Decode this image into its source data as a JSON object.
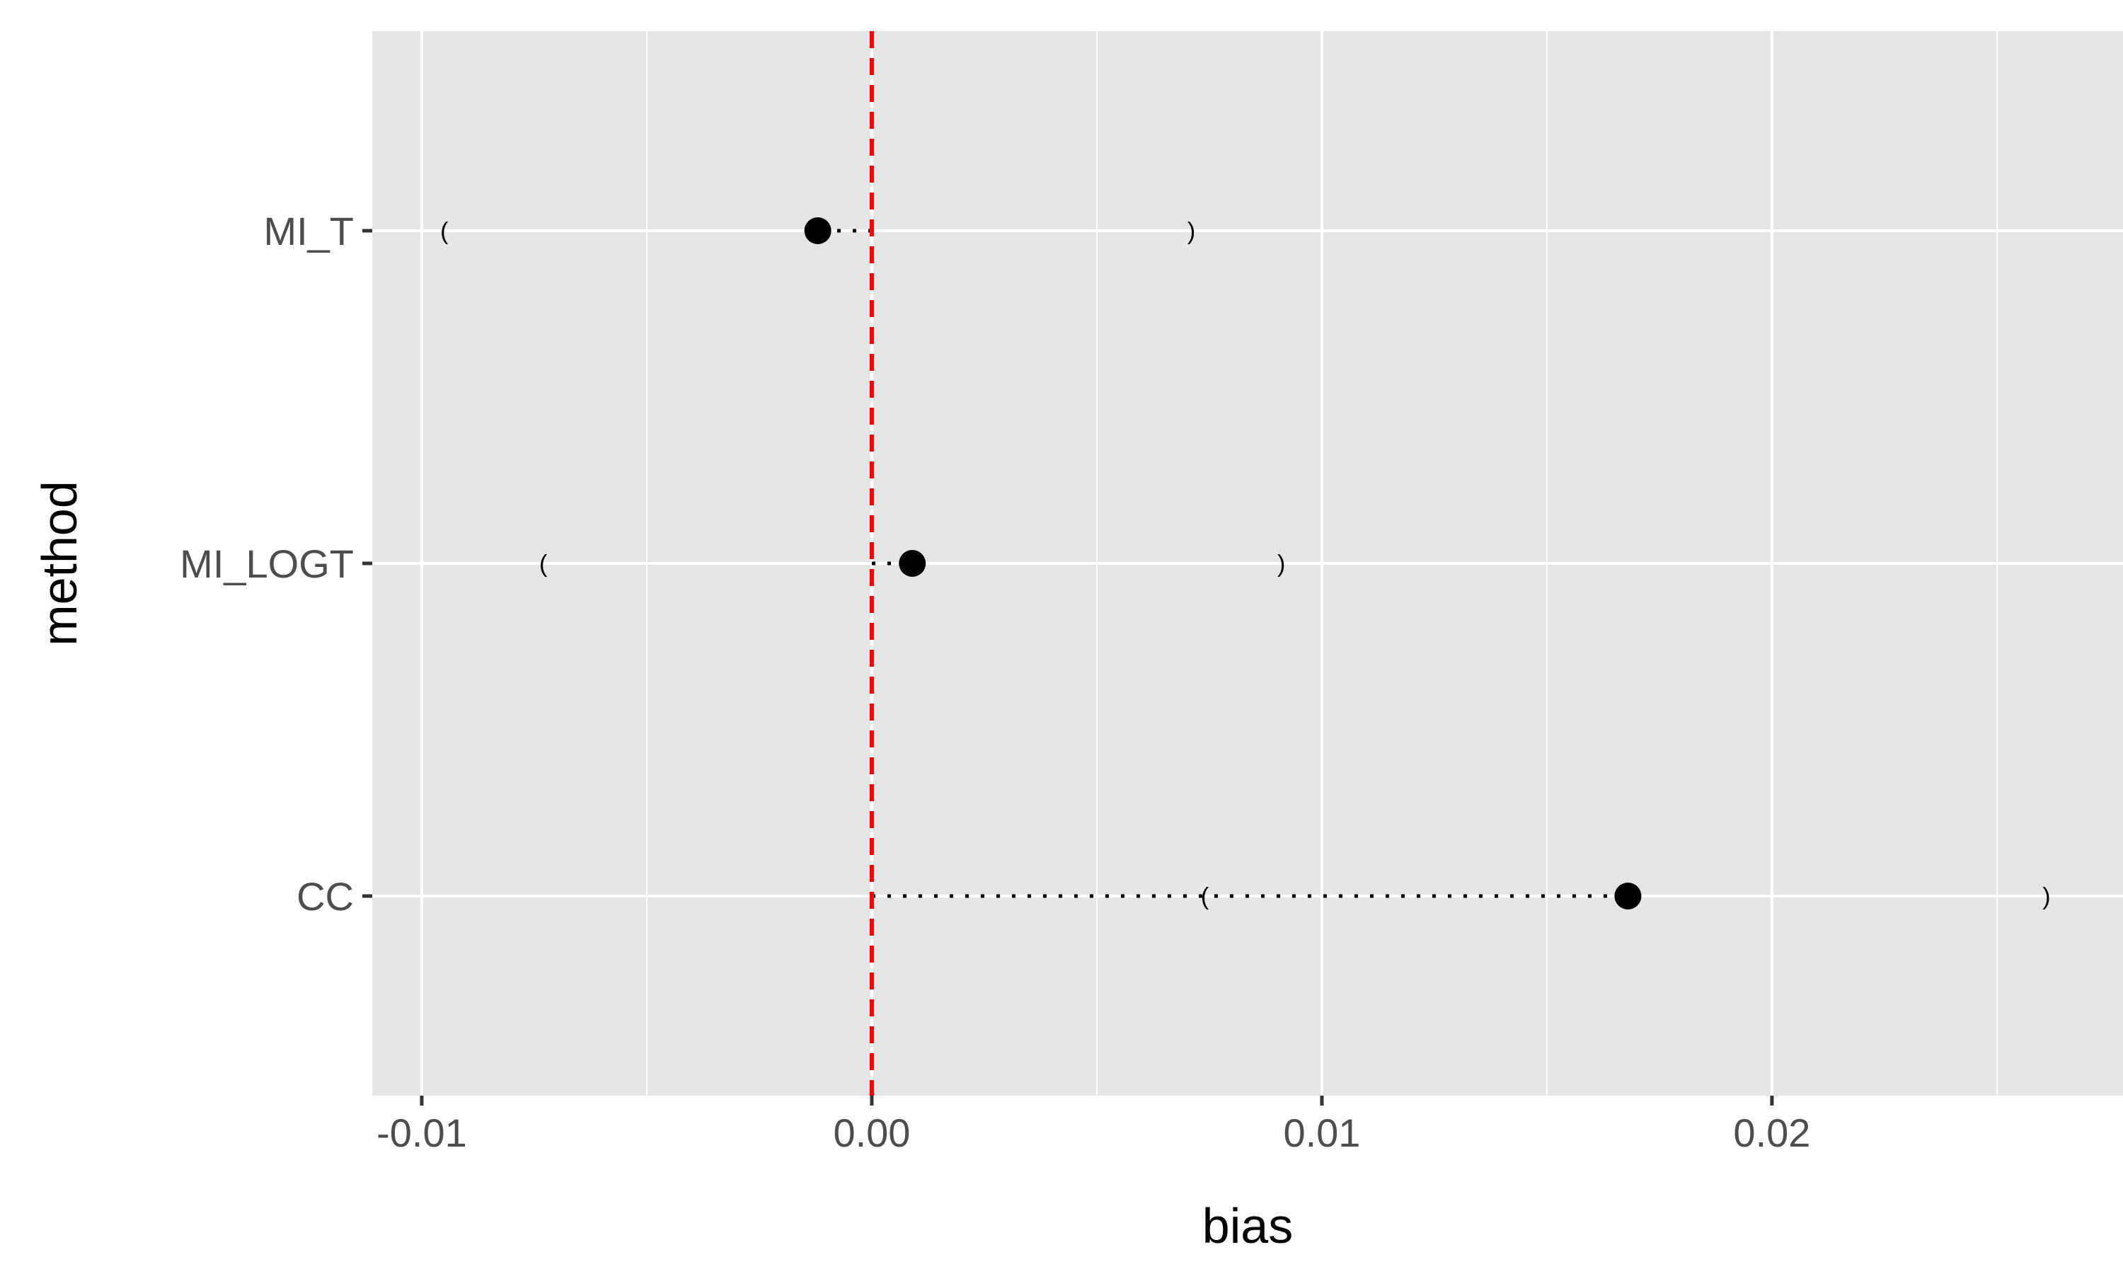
{
  "chart_data": {
    "type": "scatter",
    "xlabel": "bias",
    "ylabel": "method",
    "xlim": [
      -0.0111,
      0.0278
    ],
    "x_ticks": [
      -0.01,
      0.0,
      0.01,
      0.02
    ],
    "x_tick_labels": [
      "-0.01",
      "0.00",
      "0.01",
      "0.02"
    ],
    "x_minor_ticks": [
      -0.005,
      0.005,
      0.015,
      0.025
    ],
    "categories": [
      "CC",
      "MI_LOGT",
      "MI_T"
    ],
    "points": [
      {
        "method": "MI_T",
        "bias": -0.0012,
        "ci_low": -0.0095,
        "ci_high": 0.0071
      },
      {
        "method": "MI_LOGT",
        "bias": 0.0009,
        "ci_low": -0.0073,
        "ci_high": 0.0091
      },
      {
        "method": "CC",
        "bias": 0.0168,
        "ci_low": 0.0074,
        "ci_high": 0.0261
      }
    ],
    "ci_open_glyph": "(",
    "ci_close_glyph": ")",
    "reference_line": {
      "x": 0,
      "color": "#ff0000",
      "style": "dashed"
    },
    "grid": true,
    "colors": {
      "panel": "#e5e5e5",
      "grid": "#ffffff",
      "point": "#000000",
      "axis_text": "#4d4d4d",
      "title_text": "#000000"
    }
  }
}
